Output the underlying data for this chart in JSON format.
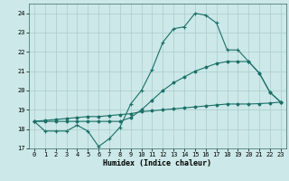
{
  "xlabel": "Humidex (Indice chaleur)",
  "bg_color": "#cce8e8",
  "grid_color": "#aacccc",
  "line_color": "#1a7068",
  "x_values": [
    0,
    1,
    2,
    3,
    4,
    5,
    6,
    7,
    8,
    9,
    10,
    11,
    12,
    13,
    14,
    15,
    16,
    17,
    18,
    19,
    20,
    21,
    22,
    23
  ],
  "y_jagged": [
    18.4,
    17.9,
    17.9,
    17.9,
    18.2,
    17.9,
    17.1,
    17.5,
    18.1,
    19.3,
    20.0,
    21.1,
    22.5,
    23.2,
    23.3,
    24.0,
    23.9,
    23.5,
    22.1,
    22.1,
    21.5,
    20.9,
    19.9,
    19.4
  ],
  "y_upper": [
    18.4,
    18.4,
    18.4,
    18.4,
    18.4,
    18.4,
    18.4,
    18.4,
    18.4,
    18.6,
    19.0,
    19.5,
    20.0,
    20.4,
    20.7,
    21.0,
    21.2,
    21.4,
    21.5,
    21.5,
    21.5,
    20.9,
    19.9,
    19.4
  ],
  "y_lower": [
    18.4,
    18.45,
    18.5,
    18.55,
    18.6,
    18.65,
    18.65,
    18.7,
    18.75,
    18.8,
    18.9,
    18.95,
    19.0,
    19.05,
    19.1,
    19.15,
    19.2,
    19.25,
    19.3,
    19.3,
    19.3,
    19.32,
    19.35,
    19.4
  ],
  "ylim": [
    17.0,
    24.5
  ],
  "xlim": [
    -0.5,
    23.5
  ],
  "yticks": [
    17,
    18,
    19,
    20,
    21,
    22,
    23,
    24
  ],
  "xticks": [
    0,
    1,
    2,
    3,
    4,
    5,
    6,
    7,
    8,
    9,
    10,
    11,
    12,
    13,
    14,
    15,
    16,
    17,
    18,
    19,
    20,
    21,
    22,
    23
  ]
}
